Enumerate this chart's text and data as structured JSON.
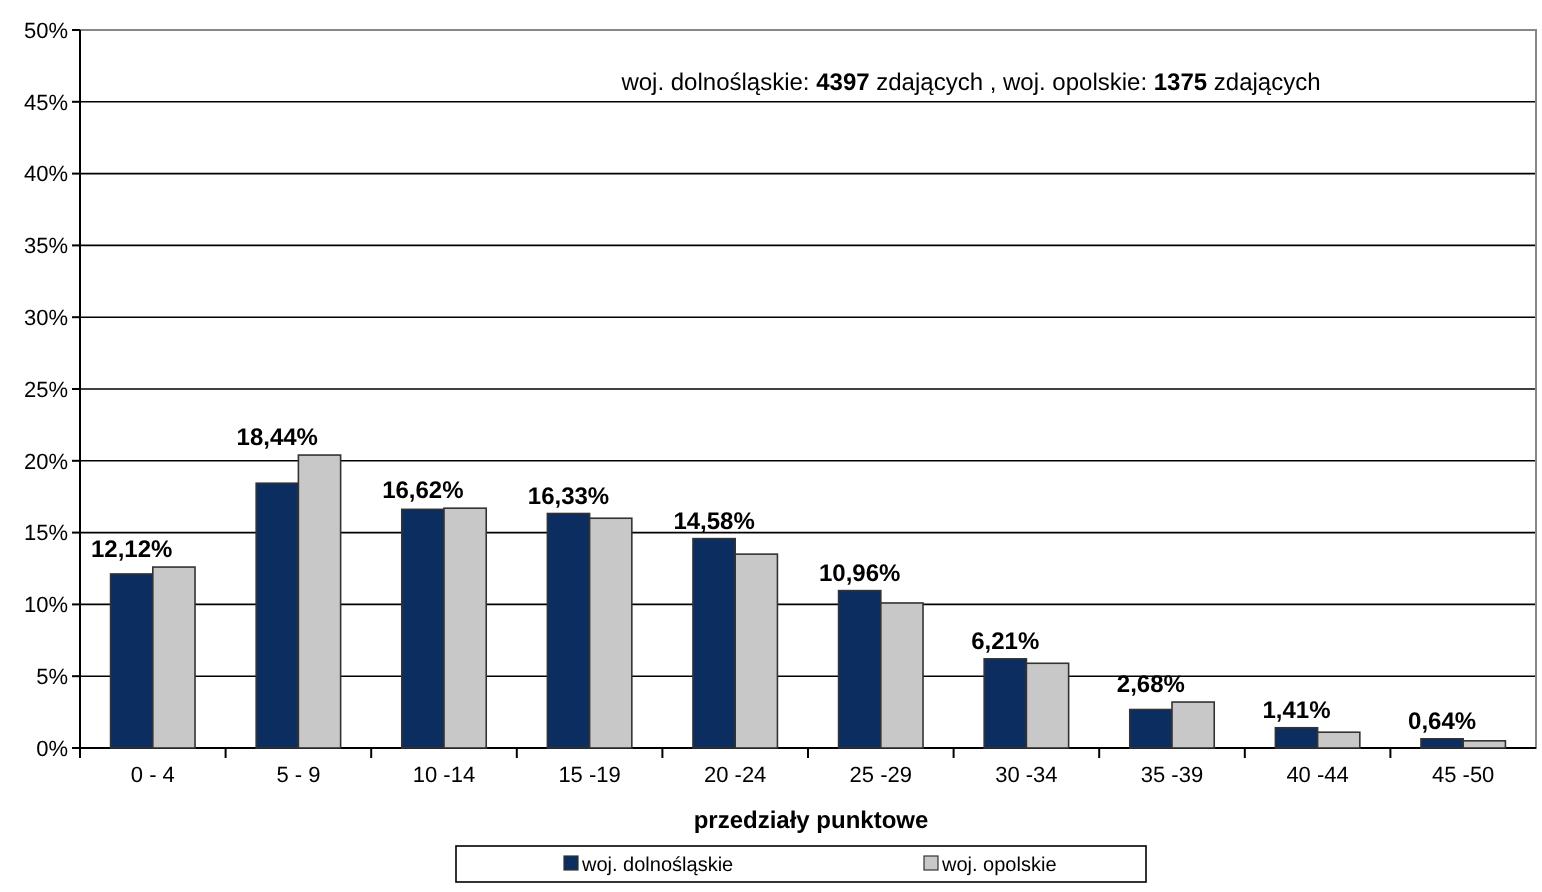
{
  "chart_data": {
    "type": "bar",
    "xlabel": "przedziały punktowe",
    "annotations": [
      "woj. dolnośląskie: 4397 zdających , woj. opolskie:  1375 zdających"
    ],
    "categories": [
      "0 - 4",
      "5 - 9",
      "10 -14",
      "15 -19",
      "20 -24",
      "25 -29",
      "30 -34",
      "35 -39",
      "40 -44",
      "45 -50"
    ],
    "series": [
      {
        "name": "woj. dolnośląskie",
        "color": "#0b2d60",
        "values": [
          12.12,
          18.44,
          16.62,
          16.33,
          14.58,
          10.96,
          6.21,
          2.68,
          1.41,
          0.64
        ],
        "value_labels": [
          "12,12%",
          "18,44%",
          "16,62%",
          "16,33%",
          "14,58%",
          "10,96%",
          "6,21%",
          "2,68%",
          "1,41%",
          "0,64%"
        ]
      },
      {
        "name": "woj. opolskie",
        "color": "#c8c8c8",
        "values": [
          12.6,
          20.4,
          16.7,
          16.0,
          13.5,
          10.1,
          5.9,
          3.2,
          1.1,
          0.5
        ]
      }
    ],
    "ylim": [
      0,
      50
    ],
    "yticks": [
      {
        "value": 0,
        "label": "0%"
      },
      {
        "value": 5,
        "label": "5%"
      },
      {
        "value": 10,
        "label": "10%"
      },
      {
        "value": 15,
        "label": "15%"
      },
      {
        "value": 20,
        "label": "20%"
      },
      {
        "value": 25,
        "label": "25%"
      },
      {
        "value": 30,
        "label": "30%"
      },
      {
        "value": 35,
        "label": "35%"
      },
      {
        "value": 40,
        "label": "40%"
      },
      {
        "value": 45,
        "label": "45%"
      },
      {
        "value": 50,
        "label": "50%"
      }
    ],
    "grid": "y",
    "legend": "bottom"
  }
}
